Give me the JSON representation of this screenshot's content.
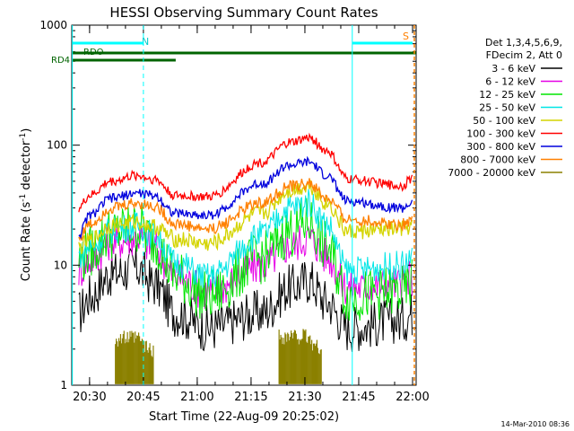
{
  "chart_data": {
    "type": "line",
    "title": "HESSI Observing Summary Count Rates",
    "xlabel": "Start Time (22-Aug-09 20:25:02)",
    "ylabel_main": "Count Rate (s",
    "ylabel_sup1": "-1",
    "ylabel_mid": " detector",
    "ylabel_sup2": "-1",
    "ylabel_end": ")",
    "y_scale": "log",
    "ylim": [
      1,
      1000
    ],
    "xlim": [
      "20:25:02",
      "22:01:00"
    ],
    "x_ticks": [
      "20:30",
      "20:45",
      "21:00",
      "21:15",
      "21:30",
      "21:45",
      "22:00"
    ],
    "y_ticks": [
      "1",
      "10",
      "100",
      "1000"
    ],
    "legend_header": [
      "Det 1,3,4,5,6,9,",
      "FDecim 2, Att 0"
    ],
    "legend_position": "right",
    "series": [
      {
        "name": "3 - 6 keV",
        "color": "#000000",
        "values": [
          [
            20.45,
            4
          ],
          [
            20.5,
            5.5
          ],
          [
            20.6,
            8.5
          ],
          [
            20.72,
            9.5
          ],
          [
            20.8,
            7
          ],
          [
            20.9,
            4
          ],
          [
            21.05,
            3
          ],
          [
            21.3,
            4
          ],
          [
            21.43,
            6.5
          ],
          [
            21.52,
            7.5
          ],
          [
            21.6,
            5
          ],
          [
            21.7,
            3
          ],
          [
            21.95,
            3.5
          ],
          [
            22.0,
            4
          ]
        ]
      },
      {
        "name": "6 - 12 keV",
        "color": "#e600e6",
        "values": [
          [
            20.45,
            9
          ],
          [
            20.5,
            11
          ],
          [
            20.6,
            15.5
          ],
          [
            20.72,
            17
          ],
          [
            20.8,
            14
          ],
          [
            20.9,
            8
          ],
          [
            21.05,
            6
          ],
          [
            21.3,
            10
          ],
          [
            21.43,
            14.5
          ],
          [
            21.52,
            17
          ],
          [
            21.6,
            12
          ],
          [
            21.7,
            6.5
          ],
          [
            21.95,
            7
          ],
          [
            22.0,
            8
          ]
        ]
      },
      {
        "name": "12 - 25 keV",
        "color": "#00e600",
        "values": [
          [
            20.45,
            11
          ],
          [
            20.5,
            13
          ],
          [
            20.6,
            18.5
          ],
          [
            20.72,
            20.5
          ],
          [
            20.8,
            16
          ],
          [
            20.9,
            8
          ],
          [
            21.05,
            5.5
          ],
          [
            21.3,
            11.5
          ],
          [
            21.43,
            19
          ],
          [
            21.52,
            23
          ],
          [
            21.6,
            14
          ],
          [
            21.7,
            5.5
          ],
          [
            21.95,
            6
          ],
          [
            22.0,
            7
          ]
        ]
      },
      {
        "name": "25 - 50 keV",
        "color": "#00e6e6",
        "values": [
          [
            20.45,
            12
          ],
          [
            20.5,
            14
          ],
          [
            20.6,
            19.5
          ],
          [
            20.72,
            21.5
          ],
          [
            20.8,
            18
          ],
          [
            20.9,
            10.5
          ],
          [
            21.05,
            8
          ],
          [
            21.3,
            18
          ],
          [
            21.43,
            30
          ],
          [
            21.52,
            33
          ],
          [
            21.6,
            22
          ],
          [
            21.7,
            9
          ],
          [
            21.95,
            10
          ],
          [
            22.0,
            11
          ]
        ]
      },
      {
        "name": "50 - 100 keV",
        "color": "#d4d400",
        "values": [
          [
            20.45,
            14
          ],
          [
            20.5,
            16
          ],
          [
            20.6,
            21.5
          ],
          [
            20.72,
            23
          ],
          [
            20.8,
            21
          ],
          [
            20.9,
            16.5
          ],
          [
            21.05,
            15
          ],
          [
            21.3,
            27
          ],
          [
            21.43,
            42
          ],
          [
            21.52,
            46
          ],
          [
            21.6,
            33
          ],
          [
            21.7,
            19
          ],
          [
            21.95,
            20
          ],
          [
            22.0,
            21
          ]
        ]
      },
      {
        "name": "100 - 300 keV",
        "color": "#ff0000",
        "values": [
          [
            20.45,
            30
          ],
          [
            20.5,
            38
          ],
          [
            20.6,
            50
          ],
          [
            20.72,
            56
          ],
          [
            20.8,
            52
          ],
          [
            20.9,
            38
          ],
          [
            21.05,
            37
          ],
          [
            21.3,
            72
          ],
          [
            21.43,
            105
          ],
          [
            21.52,
            115
          ],
          [
            21.6,
            90
          ],
          [
            21.7,
            52
          ],
          [
            21.95,
            46
          ],
          [
            22.0,
            53
          ]
        ]
      },
      {
        "name": "300 - 800 keV",
        "color": "#0000dd",
        "values": [
          [
            20.45,
            18
          ],
          [
            20.5,
            26
          ],
          [
            20.6,
            36
          ],
          [
            20.72,
            40
          ],
          [
            20.8,
            38
          ],
          [
            20.9,
            27
          ],
          [
            21.05,
            26
          ],
          [
            21.3,
            48
          ],
          [
            21.43,
            68
          ],
          [
            21.52,
            72
          ],
          [
            21.6,
            56
          ],
          [
            21.7,
            34
          ],
          [
            21.95,
            30
          ],
          [
            22.0,
            33
          ]
        ]
      },
      {
        "name": "800 - 7000 keV",
        "color": "#ff8000",
        "values": [
          [
            20.45,
            17
          ],
          [
            20.5,
            22
          ],
          [
            20.6,
            30
          ],
          [
            20.72,
            33
          ],
          [
            20.8,
            31
          ],
          [
            20.9,
            22
          ],
          [
            21.05,
            20
          ],
          [
            21.3,
            33
          ],
          [
            21.43,
            45
          ],
          [
            21.52,
            48
          ],
          [
            21.6,
            36
          ],
          [
            21.7,
            24
          ],
          [
            21.95,
            22
          ],
          [
            22.0,
            24
          ]
        ]
      },
      {
        "name": "7000 - 20000 keV",
        "color": "#8b8000",
        "values": [
          [
            20.65,
            2.6
          ],
          [
            20.72,
            2.6
          ],
          [
            20.78,
            2.1
          ],
          [
            21.42,
            2.7
          ],
          [
            21.5,
            2.7
          ],
          [
            21.56,
            2.2
          ]
        ]
      }
    ],
    "annotations": {
      "flag_labels": [
        "N",
        "S",
        "RDO",
        "RD4"
      ],
      "footer_date": "14-Mar-2010 08:36"
    }
  }
}
